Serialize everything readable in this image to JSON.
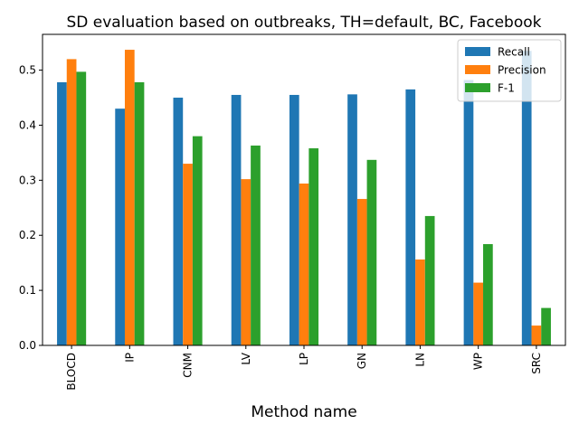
{
  "chart_data": {
    "type": "bar",
    "title": "SD evaluation based on outbreaks, TH=default, BC, Facebook",
    "xlabel": "Method name",
    "ylabel": "",
    "categories": [
      "BLOCD",
      "IP",
      "CNM",
      "LV",
      "LP",
      "GN",
      "LN",
      "WP",
      "SRC"
    ],
    "series": [
      {
        "name": "Recall",
        "color": "#1f77b4",
        "values": [
          0.478,
          0.43,
          0.45,
          0.455,
          0.455,
          0.456,
          0.465,
          0.482,
          0.535
        ]
      },
      {
        "name": "Precision",
        "color": "#ff7f0e",
        "values": [
          0.52,
          0.537,
          0.33,
          0.302,
          0.294,
          0.266,
          0.156,
          0.114,
          0.036
        ]
      },
      {
        "name": "F-1",
        "color": "#2ca02c",
        "values": [
          0.497,
          0.478,
          0.38,
          0.363,
          0.358,
          0.337,
          0.235,
          0.184,
          0.068
        ]
      }
    ],
    "ylim": [
      0,
      0.565
    ],
    "yticks": [
      "0.0",
      "0.1",
      "0.2",
      "0.3",
      "0.4",
      "0.5"
    ],
    "grid": false,
    "legend_position": "top-right"
  }
}
